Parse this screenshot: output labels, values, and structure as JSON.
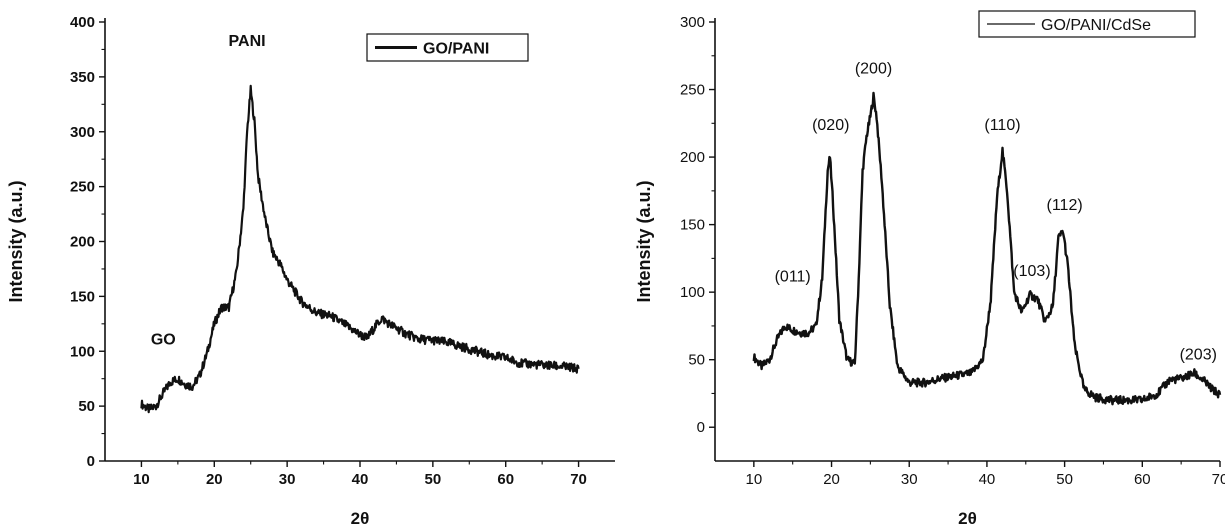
{
  "chart_data": [
    {
      "type": "line",
      "xlabel": "2θ",
      "ylabel": "Intensity (a.u.)",
      "xlim": [
        5,
        75
      ],
      "ylim": [
        0,
        400
      ],
      "xticks": [
        10,
        20,
        30,
        40,
        50,
        60,
        70
      ],
      "yticks": [
        0,
        50,
        100,
        150,
        200,
        250,
        300,
        350,
        400
      ],
      "grid": false,
      "legend": {
        "position": "top-right",
        "entries": [
          "GO/PANI"
        ]
      },
      "annotations": [
        {
          "text": "PANI",
          "x": 24.5,
          "y": 378
        },
        {
          "text": "GO",
          "x": 13,
          "y": 106
        }
      ],
      "series": [
        {
          "name": "GO/PANI",
          "color": "#111111",
          "x": [
            10,
            11,
            12,
            13,
            14,
            15,
            16,
            17,
            18,
            19,
            20,
            21,
            22,
            23,
            24,
            24.5,
            25,
            25.5,
            26,
            27,
            28,
            29,
            30,
            32,
            34,
            36,
            38,
            40,
            41,
            42,
            43,
            44,
            46,
            48,
            50,
            52,
            54,
            56,
            58,
            60,
            62,
            64,
            66,
            68,
            70
          ],
          "y": [
            52,
            47,
            50,
            62,
            72,
            75,
            70,
            68,
            78,
            98,
            125,
            140,
            140,
            170,
            230,
            300,
            338,
            310,
            260,
            220,
            190,
            180,
            165,
            145,
            135,
            132,
            124,
            115,
            112,
            122,
            130,
            125,
            117,
            111,
            110,
            108,
            104,
            100,
            96,
            94,
            89,
            88,
            87,
            86,
            84
          ]
        }
      ]
    },
    {
      "type": "line",
      "xlabel": "2θ",
      "ylabel": "Intensity (a.u.)",
      "xlim": [
        5,
        70
      ],
      "ylim": [
        -25,
        300
      ],
      "xticks": [
        10,
        20,
        30,
        40,
        50,
        60,
        70
      ],
      "yticks": [
        0,
        50,
        100,
        150,
        200,
        250,
        300
      ],
      "grid": false,
      "legend": {
        "position": "top-right",
        "entries": [
          "GO/PANI/CdSe"
        ]
      },
      "annotations": [
        {
          "text": "(011)",
          "x": 15,
          "y": 108
        },
        {
          "text": "(020)",
          "x": 19.9,
          "y": 220
        },
        {
          "text": "(200)",
          "x": 25.4,
          "y": 262
        },
        {
          "text": "(110)",
          "x": 42,
          "y": 220
        },
        {
          "text": "(103)",
          "x": 45.8,
          "y": 112
        },
        {
          "text": "(112)",
          "x": 50,
          "y": 161
        },
        {
          "text": "(203)",
          "x": 67.2,
          "y": 50
        }
      ],
      "series": [
        {
          "name": "GO/PANI/CdSe",
          "color": "#111111",
          "x": [
            10,
            11,
            12,
            13,
            14,
            15,
            16,
            17,
            18,
            18.8,
            19.5,
            19.8,
            20.2,
            21,
            22,
            23,
            23.5,
            24,
            24.5,
            25,
            25.4,
            25.8,
            26.5,
            27.5,
            28.5,
            30,
            32,
            34,
            36,
            38,
            39.5,
            40.5,
            41.3,
            42,
            42.6,
            43.5,
            44.5,
            45.5,
            46.5,
            47.5,
            48.5,
            49.2,
            49.8,
            50.4,
            51.3,
            52.5,
            54,
            56,
            58,
            60,
            62,
            63.5,
            65,
            66.7,
            68,
            69,
            70
          ],
          "y": [
            52,
            45,
            50,
            65,
            75,
            72,
            70,
            70,
            75,
            110,
            190,
            200,
            165,
            80,
            50,
            47,
            110,
            190,
            215,
            230,
            245,
            230,
            180,
            90,
            45,
            33,
            33,
            36,
            38,
            40,
            50,
            95,
            170,
            205,
            175,
            100,
            85,
            98,
            95,
            78,
            90,
            140,
            145,
            120,
            60,
            28,
            22,
            20,
            20,
            20,
            25,
            35,
            36,
            40,
            34,
            28,
            24
          ]
        }
      ]
    }
  ]
}
